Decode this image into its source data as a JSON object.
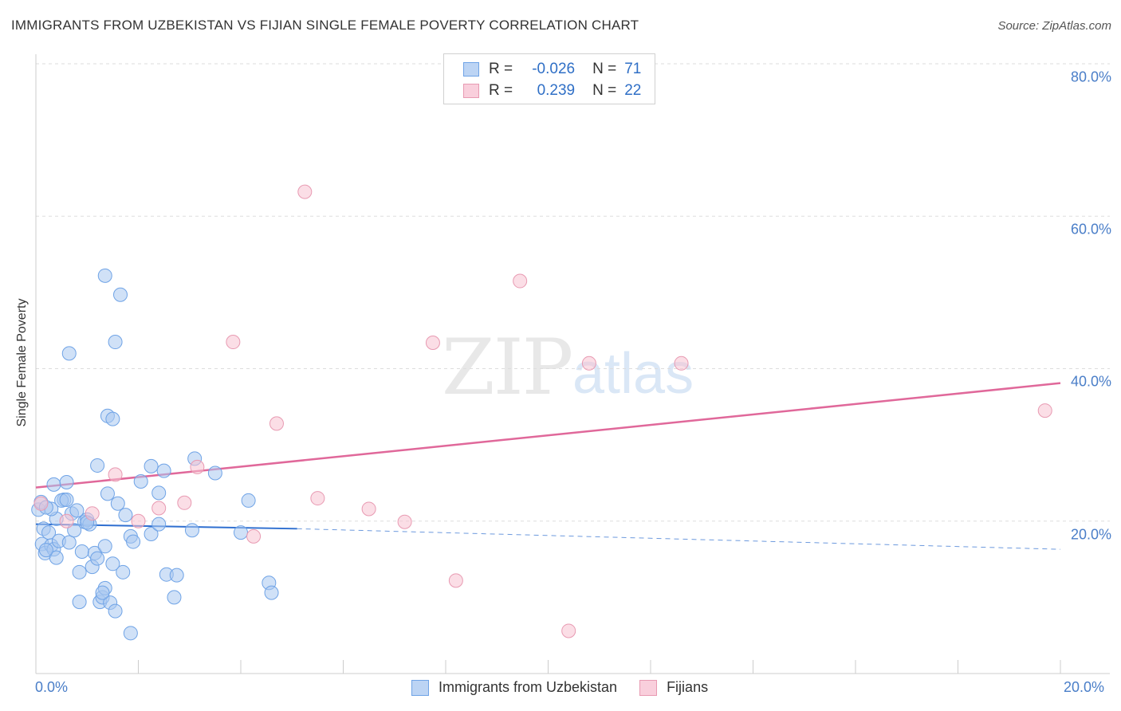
{
  "header": {
    "title": "IMMIGRANTS FROM UZBEKISTAN VS FIJIAN SINGLE FEMALE POVERTY CORRELATION CHART",
    "source": "Source: ZipAtlas.com"
  },
  "watermark": {
    "zip": "ZIP",
    "atlas": "atlas"
  },
  "legend": {
    "r_label": "R =",
    "n_label": "N =",
    "rows": [
      {
        "r": "-0.026",
        "n": "71",
        "color": "#6fa3e6"
      },
      {
        "r": "0.239",
        "n": "22",
        "color": "#f0a0b8"
      }
    ]
  },
  "bottom_legend": {
    "items": [
      {
        "label": "Immigrants from Uzbekistan",
        "color": "#6fa3e6"
      },
      {
        "label": "Fijians",
        "color": "#f0a0b8"
      }
    ]
  },
  "colors": {
    "blue_fill": "#a9c8f0",
    "blue_stroke": "#6fa3e6",
    "blue_line": "#2f6fd0",
    "pink_fill": "#f7c2d2",
    "pink_stroke": "#e89ab2",
    "pink_line": "#e0689a",
    "grid": "#dddddd",
    "axis_text": "#4a7ec8"
  },
  "chart_data": {
    "type": "scatter",
    "title": "IMMIGRANTS FROM UZBEKISTAN VS FIJIAN SINGLE FEMALE POVERTY CORRELATION CHART",
    "xlabel": "",
    "ylabel": "Single Female Poverty",
    "xlim": [
      0,
      20
    ],
    "ylim": [
      0,
      80
    ],
    "x_tick_labels": [
      "0.0%",
      "20.0%"
    ],
    "y_tick_labels": [
      "20.0%",
      "40.0%",
      "60.0%",
      "80.0%"
    ],
    "y_ticks": [
      20,
      40,
      60,
      80
    ],
    "series": [
      {
        "name": "Immigrants from Uzbekistan",
        "r": -0.026,
        "n": 71,
        "trend": {
          "x0": 0,
          "y0": 19.6,
          "x1": 5.1,
          "y1": 19.0,
          "dash_x1": 20,
          "dash_y1": 16.3
        },
        "points": [
          [
            0.05,
            21.5
          ],
          [
            0.1,
            22.5
          ],
          [
            0.15,
            19.0
          ],
          [
            0.12,
            17.0
          ],
          [
            0.18,
            15.8
          ],
          [
            0.25,
            18.5
          ],
          [
            0.3,
            16.8
          ],
          [
            0.35,
            16.3
          ],
          [
            0.4,
            20.3
          ],
          [
            0.35,
            24.8
          ],
          [
            0.45,
            17.4
          ],
          [
            0.4,
            15.2
          ],
          [
            0.55,
            22.8
          ],
          [
            0.6,
            25.1
          ],
          [
            0.65,
            17.2
          ],
          [
            0.7,
            21.0
          ],
          [
            0.75,
            18.8
          ],
          [
            0.8,
            21.4
          ],
          [
            0.85,
            13.3
          ],
          [
            0.9,
            16.0
          ],
          [
            0.95,
            19.9
          ],
          [
            1.0,
            20.2
          ],
          [
            1.05,
            19.6
          ],
          [
            0.85,
            9.4
          ],
          [
            1.1,
            14.0
          ],
          [
            1.15,
            15.8
          ],
          [
            1.2,
            15.1
          ],
          [
            1.25,
            9.4
          ],
          [
            1.3,
            10.0
          ],
          [
            1.35,
            11.2
          ],
          [
            1.45,
            9.3
          ],
          [
            1.55,
            8.2
          ],
          [
            1.6,
            22.3
          ],
          [
            1.7,
            13.3
          ],
          [
            1.75,
            20.8
          ],
          [
            1.85,
            18.0
          ],
          [
            1.9,
            17.3
          ],
          [
            1.35,
            16.7
          ],
          [
            1.2,
            27.3
          ],
          [
            1.4,
            33.8
          ],
          [
            1.4,
            23.6
          ],
          [
            1.3,
            10.6
          ],
          [
            1.5,
            33.4
          ],
          [
            1.5,
            14.4
          ],
          [
            1.35,
            52.2
          ],
          [
            1.65,
            49.7
          ],
          [
            1.85,
            5.3
          ],
          [
            1.55,
            43.5
          ],
          [
            0.65,
            42.0
          ],
          [
            2.05,
            25.2
          ],
          [
            2.25,
            27.2
          ],
          [
            2.25,
            18.3
          ],
          [
            2.4,
            19.6
          ],
          [
            2.4,
            23.7
          ],
          [
            2.5,
            26.6
          ],
          [
            2.55,
            13.0
          ],
          [
            2.75,
            12.9
          ],
          [
            2.7,
            10.0
          ],
          [
            3.05,
            18.8
          ],
          [
            3.1,
            28.2
          ],
          [
            3.5,
            26.3
          ],
          [
            4.0,
            18.5
          ],
          [
            4.15,
            22.7
          ],
          [
            4.55,
            11.9
          ],
          [
            4.6,
            10.6
          ],
          [
            0.3,
            21.6
          ],
          [
            0.5,
            22.7
          ],
          [
            0.2,
            16.2
          ],
          [
            1.0,
            19.8
          ],
          [
            0.2,
            21.8
          ],
          [
            0.6,
            22.8
          ]
        ]
      },
      {
        "name": "Fijians",
        "r": 0.239,
        "n": 22,
        "trend": {
          "x0": 0,
          "y0": 24.4,
          "x1": 20,
          "y1": 38.1
        },
        "points": [
          [
            0.1,
            22.3
          ],
          [
            0.6,
            20.0
          ],
          [
            1.1,
            21.0
          ],
          [
            1.55,
            26.1
          ],
          [
            2.0,
            20.0
          ],
          [
            2.4,
            21.7
          ],
          [
            2.9,
            22.4
          ],
          [
            3.15,
            27.1
          ],
          [
            3.85,
            43.5
          ],
          [
            4.25,
            18.0
          ],
          [
            4.7,
            32.8
          ],
          [
            5.25,
            63.2
          ],
          [
            5.5,
            23.0
          ],
          [
            6.5,
            21.6
          ],
          [
            7.2,
            19.9
          ],
          [
            7.75,
            43.4
          ],
          [
            8.2,
            12.2
          ],
          [
            9.45,
            51.5
          ],
          [
            10.4,
            5.6
          ],
          [
            10.8,
            40.7
          ],
          [
            12.6,
            40.7
          ],
          [
            19.7,
            34.5
          ]
        ]
      }
    ]
  }
}
